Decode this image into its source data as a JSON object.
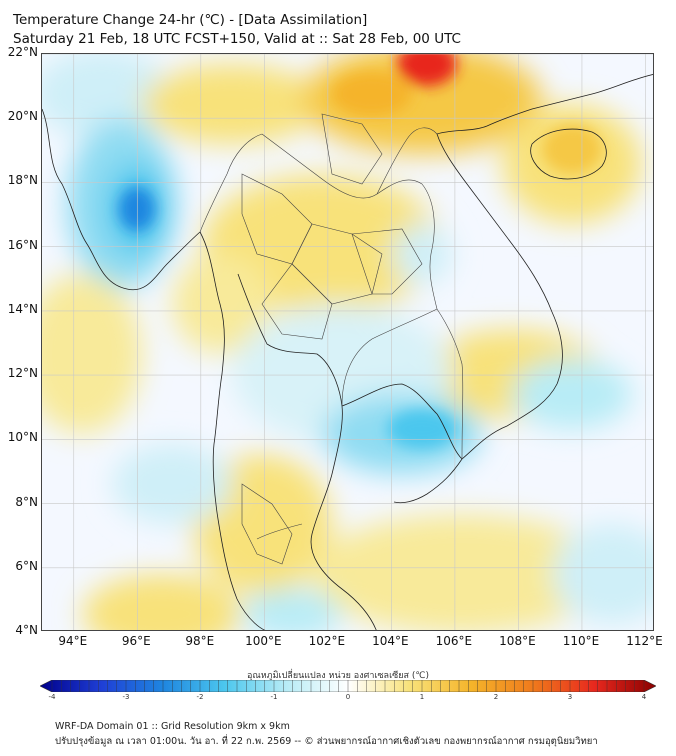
{
  "header": {
    "title": "Temperature Change 24-hr (℃) - [Data Assimilation]",
    "subtitle": "Saturday 21 Feb, 18 UTC FCST+150, Valid at :: Sat 28 Feb, 00 UTC"
  },
  "map": {
    "lat_labels": [
      "22°N",
      "20°N",
      "18°N",
      "16°N",
      "14°N",
      "12°N",
      "10°N",
      "8°N",
      "6°N",
      "4°N"
    ],
    "lon_labels": [
      "94°E",
      "96°E",
      "98°E",
      "100°E",
      "102°E",
      "104°E",
      "106°E",
      "108°E",
      "110°E",
      "112°E"
    ],
    "lat_range": [
      4,
      22
    ],
    "lon_range": [
      93,
      112.3
    ],
    "colors": {
      "strong_warm": "#e8281e",
      "warm": "#f5b42a",
      "mild_warm": "#f8e27a",
      "neutral": "#f7f9f4",
      "mild_cool": "#b8ecf6",
      "cool": "#4cc7ee",
      "strong_cool": "#1f86e0",
      "coastline": "#222222",
      "border": "#444444",
      "grid": "#c8c8c8"
    }
  },
  "colorbar": {
    "title": "อุณหภูมิเปลี่ยนแปลง หน่วย องศาเซลเซียส (℃)",
    "range": [
      -4,
      4
    ],
    "ticks": [
      "-4",
      "-3",
      "-2",
      "-1",
      "0",
      "1",
      "2",
      "3",
      "4"
    ],
    "stops": [
      "#00008b",
      "#1f3fd6",
      "#1f86e0",
      "#4cc7ee",
      "#b8ecf6",
      "#ffffff",
      "#f8e27a",
      "#f5b42a",
      "#ef7a1c",
      "#e8281e",
      "#8b0000"
    ]
  },
  "footer": {
    "line1": "WRF-DA Domain 01 :: Grid Resolution 9km x 9km",
    "line2": "ปรับปรุงข้อมูล ณ เวลา 01:00น. วัน อา. ที่ 22 ก.พ. 2569 -- © ส่วนพยากรณ์อากาศเชิงตัวเลข กองพยากรณ์อากาศ กรมอุตุนิยมวิทยา"
  }
}
